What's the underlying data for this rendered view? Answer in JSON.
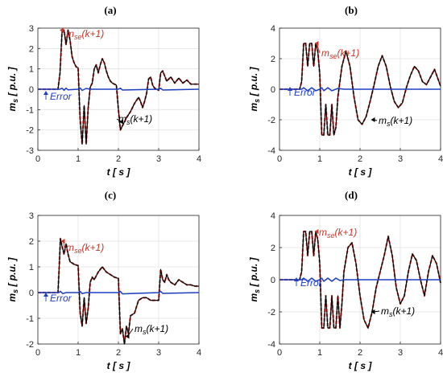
{
  "chart_data": [
    {
      "panel_label": "(a)",
      "type": "line",
      "xlabel": "t [ s ]",
      "ylabel": "m_s [ p.u. ]",
      "xlim": [
        0,
        4
      ],
      "ylim": [
        -3,
        3
      ],
      "xticks": [
        "0",
        "1",
        "2",
        "3",
        "4"
      ],
      "yticks": [
        "3",
        "2",
        "1",
        "0",
        "-1",
        "-2",
        "-3"
      ],
      "grid": true,
      "annotations": [
        {
          "text": "m",
          "sub": "se",
          "suffix": "(k+1)",
          "color": "#c0392b"
        },
        {
          "text": "m",
          "sub": "s",
          "suffix": "(k+1)",
          "color": "#000000"
        },
        {
          "text": "Error",
          "color": "#1f3fbf"
        }
      ],
      "series": [
        {
          "color": "#000000",
          "x": [
            0.0,
            0.5,
            0.55,
            0.6,
            0.65,
            0.7,
            0.75,
            0.8,
            0.85,
            0.9,
            0.95,
            1.0,
            1.05,
            1.1,
            1.15,
            1.2,
            1.25,
            1.3,
            1.35,
            1.4,
            1.45,
            1.5,
            1.55,
            1.6,
            1.65,
            1.7,
            1.75,
            1.8,
            1.85,
            1.9,
            1.95,
            2.0,
            2.05,
            2.1,
            2.2,
            2.3,
            2.4,
            2.5,
            2.55,
            2.6,
            2.65,
            2.7,
            2.75,
            2.8,
            2.85,
            2.9,
            2.95,
            3.0,
            3.05,
            3.1,
            3.2,
            3.3,
            3.4,
            3.5,
            3.6,
            3.7,
            3.8,
            3.9,
            4.0
          ],
          "y": [
            0,
            0,
            0.8,
            2.8,
            2.9,
            2.2,
            2.9,
            2.4,
            1.6,
            1.3,
            1.1,
            1.05,
            -1.5,
            -2.7,
            -0.8,
            -2.7,
            -0.9,
            0.1,
            0.3,
            1.0,
            1.2,
            0.8,
            1.2,
            1.5,
            1.3,
            0.9,
            0.6,
            0.4,
            0.3,
            0.25,
            0.2,
            -1.0,
            -2.0,
            -1.8,
            -1.4,
            -1.1,
            -0.7,
            -0.4,
            -0.6,
            -0.9,
            -0.6,
            -0.2,
            0.5,
            0.6,
            0.2,
            0.05,
            0.0,
            -0.05,
            0.8,
            0.9,
            0.4,
            0.6,
            0.3,
            0.55,
            0.3,
            0.45,
            0.25,
            0.25,
            0.25
          ]
        },
        {
          "color": "#1f3fbf",
          "x": [
            0,
            0.55,
            0.6,
            0.65,
            0.7,
            0.75,
            1.0,
            1.05,
            1.1,
            1.2,
            1.3,
            2.0,
            2.05,
            2.1,
            3.0,
            3.05,
            3.1,
            4.0
          ],
          "y": [
            0,
            0,
            0.05,
            -0.05,
            0.05,
            -0.03,
            0,
            0.06,
            -0.06,
            0.04,
            0,
            0,
            0.05,
            -0.04,
            0,
            0.05,
            -0.04,
            0
          ]
        }
      ]
    },
    {
      "panel_label": "(b)",
      "type": "line",
      "xlabel": "t [ s ]",
      "ylabel": "m_s [ p.u. ]",
      "xlim": [
        0,
        4
      ],
      "ylim": [
        -4,
        4
      ],
      "xticks": [
        "0",
        "1",
        "2",
        "3",
        "4"
      ],
      "yticks": [
        "4",
        "2",
        "0",
        "-2",
        "-4"
      ],
      "grid": true,
      "annotations": [
        {
          "text": "m",
          "sub": "se",
          "suffix": "(k+1)",
          "color": "#c0392b"
        },
        {
          "text": "Error",
          "color": "#1f3fbf"
        },
        {
          "text": "m",
          "sub": "s",
          "suffix": "(k+1)",
          "color": "#000000"
        }
      ],
      "series": [
        {
          "color": "#000000",
          "x": [
            0.0,
            0.5,
            0.55,
            0.6,
            0.65,
            0.7,
            0.75,
            0.8,
            0.85,
            0.9,
            0.95,
            1.0,
            1.05,
            1.1,
            1.15,
            1.2,
            1.25,
            1.3,
            1.35,
            1.4,
            1.45,
            1.55,
            1.65,
            1.75,
            1.85,
            1.95,
            2.05,
            2.15,
            2.25,
            2.35,
            2.45,
            2.55,
            2.65,
            2.75,
            2.85,
            2.95,
            3.05,
            3.15,
            3.25,
            3.35,
            3.45,
            3.55,
            3.65,
            3.75,
            3.85,
            4.0
          ],
          "y": [
            0,
            0,
            0.5,
            3.0,
            3.0,
            1.5,
            3.0,
            3.0,
            1.5,
            3.0,
            2.5,
            1.0,
            -3.0,
            -3.0,
            -1.0,
            -3.0,
            -3.0,
            -1.0,
            -3.0,
            -2.5,
            -0.5,
            1.5,
            2.5,
            1.5,
            -0.5,
            -2.0,
            -2.3,
            -1.8,
            -0.8,
            0.3,
            1.5,
            2.2,
            1.5,
            0.2,
            -0.8,
            -1.2,
            -0.9,
            0.1,
            0.9,
            1.5,
            1.2,
            0.5,
            0.3,
            0.8,
            1.3,
            0.2
          ]
        },
        {
          "color": "#1f3fbf",
          "x": [
            0,
            0.55,
            0.6,
            0.7,
            0.8,
            0.9,
            1.0,
            1.05,
            1.1,
            1.2,
            1.3,
            1.45,
            1.6,
            4.0
          ],
          "y": [
            0,
            0,
            0.1,
            -0.1,
            0.1,
            -0.1,
            0,
            0.1,
            -0.1,
            0.1,
            -0.1,
            0.05,
            0,
            0
          ]
        }
      ]
    },
    {
      "panel_label": "(c)",
      "type": "line",
      "xlabel": "t [ s ]",
      "ylabel": "m_s [ p.u. ]",
      "xlim": [
        0,
        4
      ],
      "ylim": [
        -2,
        3
      ],
      "xticks": [
        "0",
        "1",
        "2",
        "3",
        "4"
      ],
      "yticks": [
        "3",
        "2",
        "1",
        "0",
        "-1",
        "-2"
      ],
      "grid": true,
      "annotations": [
        {
          "text": "m",
          "sub": "se",
          "suffix": "(k+1)",
          "color": "#c0392b"
        },
        {
          "text": "Error",
          "color": "#1f3fbf"
        },
        {
          "text": "m",
          "sub": "s",
          "suffix": "(k+1)",
          "color": "#000000"
        }
      ],
      "series": [
        {
          "color": "#000000",
          "x": [
            0.0,
            0.5,
            0.53,
            0.56,
            0.6,
            0.65,
            0.7,
            0.75,
            0.8,
            0.9,
            1.0,
            1.05,
            1.1,
            1.15,
            1.2,
            1.25,
            1.3,
            1.35,
            1.4,
            1.5,
            1.6,
            1.7,
            1.8,
            1.9,
            2.0,
            2.05,
            2.1,
            2.15,
            2.2,
            2.25,
            2.3,
            2.4,
            2.5,
            2.6,
            2.7,
            2.8,
            2.9,
            3.0,
            3.05,
            3.1,
            3.15,
            3.2,
            3.25,
            3.3,
            3.4,
            3.5,
            3.6,
            3.7,
            3.8,
            3.9,
            4.0
          ],
          "y": [
            0,
            0,
            1.0,
            2.1,
            1.8,
            1.5,
            1.9,
            1.5,
            1.2,
            1.1,
            1.05,
            -0.8,
            -1.3,
            -0.2,
            -1.2,
            -0.6,
            0.4,
            0.6,
            0.5,
            0.8,
            1.0,
            0.8,
            0.7,
            0.6,
            0.55,
            -1.6,
            -1.4,
            -2.0,
            -1.3,
            -1.6,
            -0.9,
            -0.8,
            -0.3,
            -0.2,
            -0.2,
            -0.3,
            -0.3,
            -0.3,
            0.9,
            0.5,
            0.4,
            0.7,
            0.5,
            0.4,
            0.3,
            0.5,
            0.4,
            0.3,
            0.3,
            0.25,
            0.25
          ]
        },
        {
          "color": "#1f3fbf",
          "x": [
            0,
            0.52,
            0.56,
            0.62,
            0.7,
            1.0,
            1.05,
            1.1,
            1.2,
            2.0,
            2.05,
            2.1,
            3.0,
            3.05,
            3.1,
            4.0
          ],
          "y": [
            0,
            0,
            0.05,
            -0.04,
            0,
            0,
            0.05,
            -0.04,
            0,
            0,
            0.05,
            -0.05,
            0,
            0.05,
            -0.03,
            0
          ]
        }
      ]
    },
    {
      "panel_label": "(d)",
      "type": "line",
      "xlabel": "t [ s ]",
      "ylabel": "m_s [ p.u. ]",
      "xlim": [
        0,
        4
      ],
      "ylim": [
        -4,
        4
      ],
      "xticks": [
        "0",
        "1",
        "2",
        "3",
        "4"
      ],
      "yticks": [
        "4",
        "2",
        "0",
        "-2",
        "-4"
      ],
      "grid": true,
      "annotations": [
        {
          "text": "m",
          "sub": "se",
          "suffix": "(k+1)",
          "color": "#c0392b"
        },
        {
          "text": "Error",
          "color": "#1f3fbf"
        },
        {
          "text": "m",
          "sub": "s",
          "suffix": "(k+1)",
          "color": "#000000"
        }
      ],
      "series": [
        {
          "color": "#000000",
          "x": [
            0.0,
            0.5,
            0.55,
            0.6,
            0.65,
            0.7,
            0.75,
            0.8,
            0.85,
            0.9,
            0.95,
            1.0,
            1.05,
            1.1,
            1.15,
            1.2,
            1.25,
            1.3,
            1.35,
            1.4,
            1.45,
            1.5,
            1.55,
            1.6,
            1.7,
            1.8,
            1.9,
            2.0,
            2.1,
            2.2,
            2.3,
            2.4,
            2.5,
            2.6,
            2.7,
            2.8,
            2.9,
            3.0,
            3.1,
            3.2,
            3.3,
            3.4,
            3.5,
            3.6,
            3.7,
            3.8,
            3.9,
            4.0
          ],
          "y": [
            0,
            0,
            0.5,
            3.0,
            3.0,
            1.5,
            3.0,
            3.0,
            1.5,
            3.0,
            2.5,
            1.0,
            -3.0,
            -3.0,
            -1.0,
            -3.0,
            -3.0,
            -1.0,
            -3.0,
            -3.0,
            -1.0,
            -3.0,
            -1.5,
            0.5,
            2.0,
            2.3,
            1.0,
            -1.0,
            -2.5,
            -3.0,
            -2.0,
            -0.5,
            0.5,
            1.5,
            2.7,
            1.5,
            -0.5,
            -1.5,
            -1.0,
            0.5,
            1.6,
            1.2,
            0.0,
            -1.0,
            0.5,
            1.5,
            1.0,
            -0.2
          ]
        },
        {
          "color": "#1f3fbf",
          "x": [
            0,
            0.55,
            0.6,
            0.7,
            0.8,
            0.9,
            1.0,
            1.05,
            1.1,
            1.2,
            1.3,
            1.4,
            1.5,
            1.6,
            4.0
          ],
          "y": [
            0,
            0,
            0.1,
            -0.1,
            0.1,
            -0.1,
            0,
            0.1,
            -0.1,
            0.1,
            -0.1,
            0.1,
            -0.05,
            0,
            0
          ]
        }
      ]
    }
  ]
}
